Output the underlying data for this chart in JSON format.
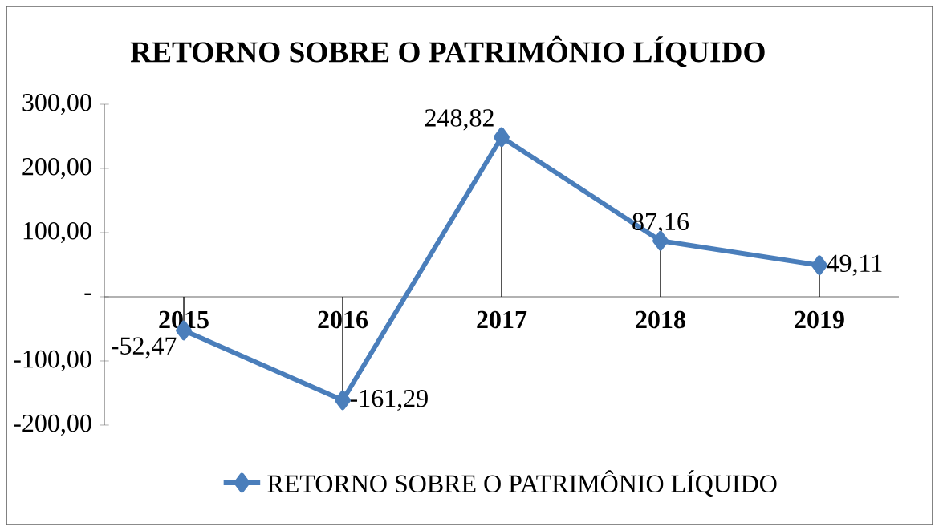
{
  "chart_data": {
    "type": "line",
    "title": "RETORNO SOBRE O PATRIMÔNIO LÍQUIDO",
    "categories": [
      "2015",
      "2016",
      "2017",
      "2018",
      "2019"
    ],
    "series": [
      {
        "name": "RETORNO SOBRE O PATRIMÔNIO LÍQUIDO",
        "color": "#4a7ebb",
        "values": [
          -52.47,
          -161.29,
          248.82,
          87.16,
          49.11
        ],
        "value_labels": [
          "-52,47",
          "-161,29",
          "248,82",
          "87,16",
          "49,11"
        ]
      }
    ],
    "ylim": [
      -200,
      300
    ],
    "yticks": [
      {
        "value": -200,
        "label": "-200,00"
      },
      {
        "value": -100,
        "label": "-100,00"
      },
      {
        "value": 0,
        "label": "-"
      },
      {
        "value": 100,
        "label": "100,00"
      },
      {
        "value": 200,
        "label": "200,00"
      },
      {
        "value": 300,
        "label": "300,00"
      }
    ],
    "grid": false,
    "legend": "bottom",
    "marker": "diamond",
    "line_style": "solid"
  }
}
